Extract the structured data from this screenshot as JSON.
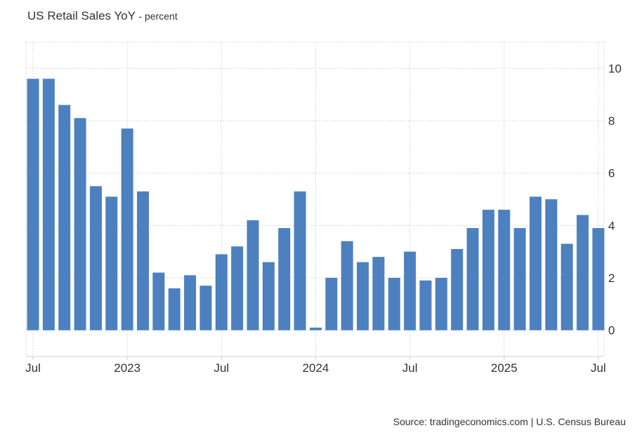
{
  "title": "US Retail Sales YoY",
  "subtitle": "- percent",
  "source": "Source: tradingeconomics.com | U.S. Census Bureau",
  "colors": {
    "bar": "#4d80bf",
    "grid": "#d6d6d6",
    "axis": "#cccccc",
    "text": "#333333"
  },
  "chart_data": {
    "type": "bar",
    "title": "US Retail Sales YoY",
    "ylabel": "",
    "xlabel": "",
    "ylim": [
      -1,
      11
    ],
    "yticks": [
      0,
      2,
      4,
      6,
      8,
      10
    ],
    "grid": true,
    "legend": "none",
    "categories": [
      "Jul 2022",
      "Aug 2022",
      "Sep 2022",
      "Oct 2022",
      "Nov 2022",
      "Dec 2022",
      "Jan 2023",
      "Feb 2023",
      "Mar 2023",
      "Apr 2023",
      "May 2023",
      "Jun 2023",
      "Jul 2023",
      "Aug 2023",
      "Sep 2023",
      "Oct 2023",
      "Nov 2023",
      "Dec 2023",
      "Jan 2024",
      "Feb 2024",
      "Mar 2024",
      "Apr 2024",
      "May 2024",
      "Jun 2024",
      "Jul 2024",
      "Aug 2024",
      "Sep 2024",
      "Oct 2024",
      "Nov 2024",
      "Dec 2024",
      "Jan 2025",
      "Feb 2025",
      "Mar 2025",
      "Apr 2025",
      "May 2025",
      "Jun 2025",
      "Jul 2025"
    ],
    "values": [
      9.6,
      9.6,
      8.6,
      8.1,
      5.5,
      5.1,
      7.7,
      5.3,
      2.2,
      1.6,
      2.1,
      1.7,
      2.9,
      3.2,
      4.2,
      2.6,
      3.9,
      5.3,
      0.1,
      2.0,
      3.4,
      2.6,
      2.8,
      2.0,
      3.0,
      1.9,
      2.0,
      3.1,
      3.9,
      4.6,
      4.6,
      3.9,
      5.1,
      5.0,
      3.3,
      4.4,
      3.9
    ],
    "xtick_labels": [
      {
        "label": "Jul",
        "index": 0
      },
      {
        "label": "2023",
        "index": 6
      },
      {
        "label": "Jul",
        "index": 12
      },
      {
        "label": "2024",
        "index": 18
      },
      {
        "label": "Jul",
        "index": 24
      },
      {
        "label": "2025",
        "index": 30
      },
      {
        "label": "Jul",
        "index": 36
      }
    ]
  }
}
